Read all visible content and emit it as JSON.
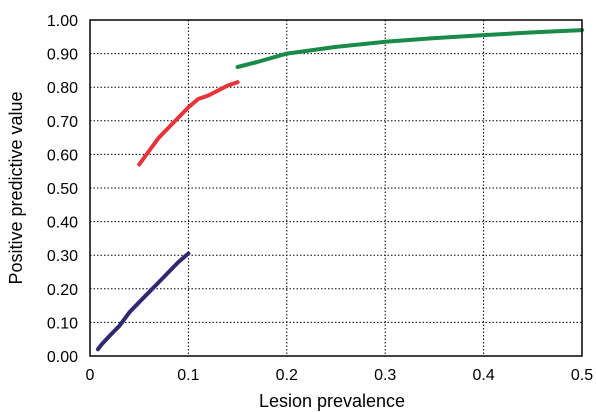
{
  "chart_data": {
    "type": "line",
    "title": "",
    "xlabel": "Lesion prevalence",
    "ylabel": "Positive predictive value",
    "xlim": [
      0,
      0.5
    ],
    "ylim": [
      0,
      1.0
    ],
    "x_ticks": [
      "0",
      "0.1",
      "0.2",
      "0.3",
      "0.4",
      "0.5"
    ],
    "x_tick_values": [
      0,
      0.1,
      0.2,
      0.3,
      0.4,
      0.5
    ],
    "y_ticks": [
      "0.00",
      "0.10",
      "0.20",
      "0.30",
      "0.40",
      "0.50",
      "0.60",
      "0.70",
      "0.80",
      "0.90",
      "1.00"
    ],
    "y_tick_values": [
      0,
      0.1,
      0.2,
      0.3,
      0.4,
      0.5,
      0.6,
      0.7,
      0.8,
      0.9,
      1.0
    ],
    "grid": true,
    "series": [
      {
        "color": "#2e2a72",
        "points": [
          [
            0.008,
            0.02
          ],
          [
            0.012,
            0.035
          ],
          [
            0.02,
            0.06
          ],
          [
            0.03,
            0.09
          ],
          [
            0.04,
            0.13
          ],
          [
            0.05,
            0.16
          ],
          [
            0.06,
            0.19
          ],
          [
            0.07,
            0.22
          ],
          [
            0.08,
            0.25
          ],
          [
            0.09,
            0.28
          ],
          [
            0.1,
            0.305
          ]
        ]
      },
      {
        "color": "#e8333a",
        "points": [
          [
            0.05,
            0.57
          ],
          [
            0.06,
            0.61
          ],
          [
            0.07,
            0.65
          ],
          [
            0.08,
            0.68
          ],
          [
            0.09,
            0.71
          ],
          [
            0.1,
            0.74
          ],
          [
            0.11,
            0.765
          ],
          [
            0.12,
            0.775
          ],
          [
            0.13,
            0.79
          ],
          [
            0.14,
            0.805
          ],
          [
            0.15,
            0.815
          ]
        ]
      },
      {
        "color": "#1a8a48",
        "points": [
          [
            0.15,
            0.86
          ],
          [
            0.17,
            0.875
          ],
          [
            0.2,
            0.9
          ],
          [
            0.25,
            0.92
          ],
          [
            0.3,
            0.935
          ],
          [
            0.35,
            0.946
          ],
          [
            0.4,
            0.955
          ],
          [
            0.45,
            0.963
          ],
          [
            0.5,
            0.97
          ]
        ]
      }
    ]
  }
}
